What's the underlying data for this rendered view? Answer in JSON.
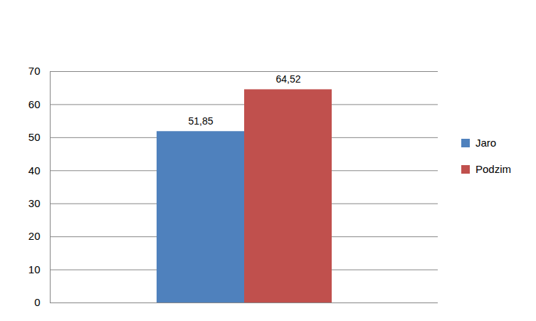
{
  "chart_data": {
    "type": "bar",
    "categories": [
      null
    ],
    "series": [
      {
        "name": "Jaro",
        "color": "#4f81bd",
        "values": [
          51.85
        ],
        "value_labels": [
          "51,85"
        ]
      },
      {
        "name": "Podzim",
        "color": "#c0504d",
        "values": [
          64.52
        ],
        "value_labels": [
          "64,52"
        ]
      }
    ],
    "ylim": [
      0,
      70
    ],
    "yticks": [
      0,
      10,
      20,
      30,
      40,
      50,
      60,
      70
    ],
    "grid": true,
    "legend": "right",
    "data_labels": true,
    "tick_labels": "y"
  }
}
